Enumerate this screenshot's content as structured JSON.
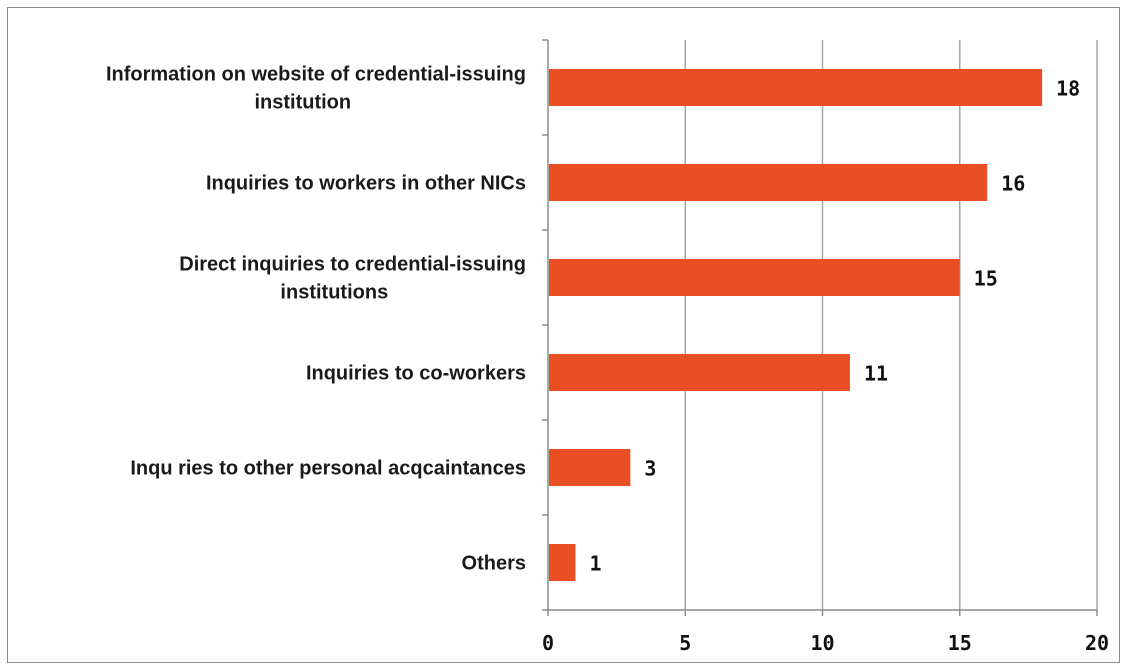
{
  "chart_data": {
    "type": "bar",
    "orientation": "horizontal",
    "categories": [
      [
        "Information on website of credential-issuing",
        "institution"
      ],
      [
        "Inquiries to workers in other NICs"
      ],
      [
        "Direct inquiries to credential-issuing",
        "institutions"
      ],
      [
        "Inquiries to co-workers"
      ],
      [
        "Inqu ries to other personal acqcaintances"
      ],
      [
        "Others"
      ]
    ],
    "values": [
      18,
      16,
      15,
      11,
      3,
      1
    ],
    "xlim": [
      0,
      20
    ],
    "xticks": [
      0,
      5,
      10,
      15,
      20
    ],
    "grid": "vertical",
    "legend": "none",
    "title": "",
    "xlabel": "",
    "ylabel": "",
    "bar_color": "#e94e24",
    "grid_color": "#a6a6a6",
    "axis_color": "#8c8c8c"
  }
}
